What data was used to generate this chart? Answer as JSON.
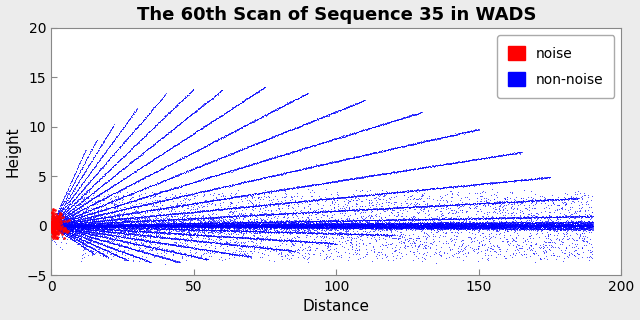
{
  "title": "The 60th Scan of Sequence 35 in WADS",
  "xlabel": "Distance",
  "ylabel": "Height",
  "xlim": [
    0,
    200
  ],
  "ylim": [
    -5,
    20
  ],
  "xticks": [
    0,
    50,
    100,
    150,
    200
  ],
  "yticks": [
    -5,
    0,
    5,
    10,
    15,
    20
  ],
  "background_color": "#ececec",
  "plot_bg_color": "#ffffff",
  "noise_color": "#ff0000",
  "nonnoise_color": "#0000ff",
  "title_fontsize": 13,
  "label_fontsize": 11,
  "seed": 42,
  "elevation_angles_above": [
    0.005,
    0.015,
    0.028,
    0.045,
    0.065,
    0.088,
    0.115,
    0.148,
    0.185,
    0.225,
    0.27,
    0.32,
    0.375,
    0.435,
    0.5,
    0.57
  ],
  "elevation_angles_below": [
    -0.008,
    -0.018,
    -0.03,
    -0.045,
    -0.062,
    -0.082,
    -0.105,
    -0.13,
    -0.158,
    -0.188
  ],
  "max_range_above": [
    190,
    185,
    175,
    165,
    150,
    130,
    110,
    90,
    75,
    60,
    50,
    40,
    30,
    22,
    16,
    12
  ],
  "max_range_below": [
    120,
    100,
    85,
    70,
    55,
    45,
    35,
    27,
    20,
    15
  ],
  "pts_per_line": 1800,
  "noise_cluster_scale": 1.5,
  "n_noise": 200
}
